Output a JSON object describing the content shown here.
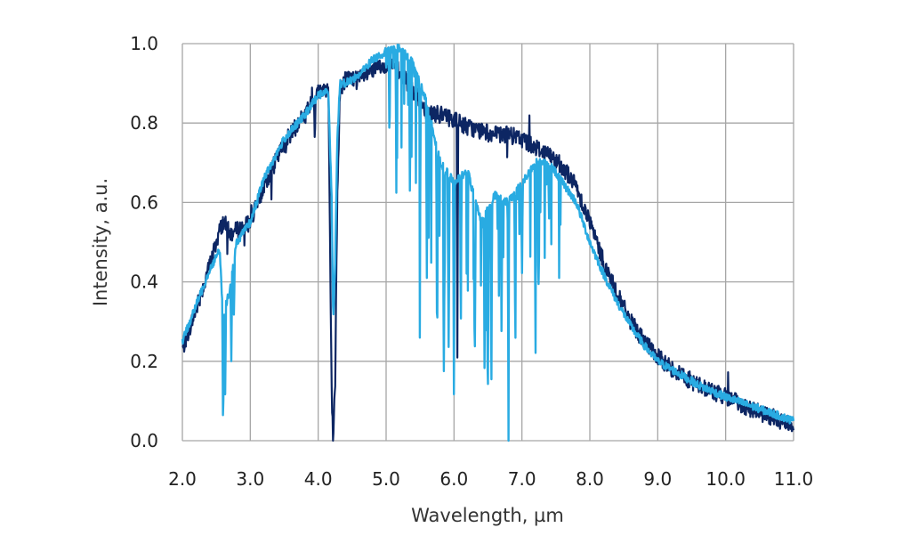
{
  "chart_data": {
    "type": "line",
    "title": "",
    "xlabel": "Wavelength, µm",
    "ylabel": "Intensity, a.u.",
    "xlim": [
      2.0,
      11.0
    ],
    "ylim": [
      0.0,
      1.0
    ],
    "x_ticks": [
      "2.0",
      "3.0",
      "4.0",
      "5.0",
      "6.0",
      "7.0",
      "8.0",
      "9.0",
      "10.0",
      "11.0"
    ],
    "y_ticks": [
      "0.0",
      "0.2",
      "0.4",
      "0.6",
      "0.8",
      "1.0"
    ],
    "grid": true,
    "legend": "none",
    "series": [
      {
        "color": "#0d2663",
        "noise": 0.022,
        "x": [
          2.0,
          2.2,
          2.4,
          2.55,
          2.6,
          2.65,
          2.7,
          2.8,
          3.0,
          3.2,
          3.5,
          3.8,
          4.0,
          4.15,
          4.18,
          4.2,
          4.22,
          4.25,
          4.28,
          4.32,
          4.4,
          4.6,
          4.8,
          5.0,
          5.2,
          5.4,
          5.6,
          5.8,
          6.0,
          6.2,
          6.4,
          6.6,
          6.8,
          7.0,
          7.2,
          7.4,
          7.6,
          7.8,
          8.0,
          8.2,
          8.4,
          8.6,
          8.8,
          9.0,
          9.3,
          9.6,
          10.0,
          10.5,
          11.0
        ],
        "y": [
          0.23,
          0.33,
          0.44,
          0.53,
          0.55,
          0.54,
          0.52,
          0.53,
          0.55,
          0.64,
          0.75,
          0.82,
          0.88,
          0.89,
          0.4,
          0.1,
          0.0,
          0.15,
          0.6,
          0.88,
          0.91,
          0.91,
          0.93,
          0.95,
          0.93,
          0.88,
          0.83,
          0.82,
          0.81,
          0.79,
          0.78,
          0.77,
          0.77,
          0.76,
          0.74,
          0.72,
          0.69,
          0.64,
          0.55,
          0.45,
          0.37,
          0.3,
          0.25,
          0.21,
          0.17,
          0.14,
          0.11,
          0.07,
          0.04
        ]
      },
      {
        "color": "#29abe2",
        "noise": 0.01,
        "x": [
          2.0,
          2.2,
          2.4,
          2.55,
          2.6,
          2.65,
          2.7,
          2.8,
          3.0,
          3.2,
          3.5,
          3.8,
          4.0,
          4.15,
          4.2,
          4.22,
          4.25,
          4.28,
          4.32,
          4.4,
          4.6,
          4.8,
          5.0,
          5.2,
          5.4,
          5.6,
          5.8,
          6.0,
          6.2,
          6.4,
          6.6,
          6.8,
          7.0,
          7.2,
          7.4,
          7.6,
          7.8,
          8.0,
          8.2,
          8.4,
          8.6,
          8.8,
          9.0,
          9.3,
          9.6,
          10.0,
          10.5,
          11.0
        ],
        "y": [
          0.25,
          0.34,
          0.43,
          0.48,
          0.3,
          0.35,
          0.38,
          0.5,
          0.55,
          0.66,
          0.76,
          0.82,
          0.87,
          0.88,
          0.6,
          0.3,
          0.45,
          0.75,
          0.9,
          0.9,
          0.92,
          0.96,
          0.98,
          0.99,
          0.95,
          0.85,
          0.7,
          0.65,
          0.68,
          0.55,
          0.62,
          0.6,
          0.65,
          0.7,
          0.7,
          0.65,
          0.6,
          0.5,
          0.42,
          0.35,
          0.29,
          0.24,
          0.2,
          0.17,
          0.14,
          0.11,
          0.08,
          0.05
        ]
      }
    ],
    "absorption_bands": [
      {
        "x": 2.6,
        "depth": 0.3,
        "series": 1
      },
      {
        "x": 2.63,
        "depth": 0.22,
        "series": 1
      },
      {
        "x": 2.72,
        "depth": 0.2,
        "series": 1
      },
      {
        "x": 2.76,
        "depth": 0.15,
        "series": 1
      },
      {
        "x": 3.95,
        "depth": 0.1,
        "series": 0
      },
      {
        "x": 5.05,
        "depth": 0.25,
        "series": 1
      },
      {
        "x": 5.15,
        "depth": 0.3,
        "series": 1
      },
      {
        "x": 5.35,
        "depth": 0.35,
        "series": 1
      },
      {
        "x": 5.5,
        "depth": 0.4,
        "series": 1
      },
      {
        "x": 5.6,
        "depth": 0.45,
        "series": 1
      },
      {
        "x": 5.75,
        "depth": 0.5,
        "series": 1
      },
      {
        "x": 5.85,
        "depth": 0.55,
        "series": 1
      },
      {
        "x": 5.92,
        "depth": 0.5,
        "series": 1
      },
      {
        "x": 6.0,
        "depth": 0.6,
        "series": 1
      },
      {
        "x": 6.05,
        "depth": 0.6,
        "series": 0
      },
      {
        "x": 6.1,
        "depth": 0.4,
        "series": 1
      },
      {
        "x": 6.3,
        "depth": 0.35,
        "series": 1
      },
      {
        "x": 6.45,
        "depth": 0.4,
        "series": 1
      },
      {
        "x": 6.5,
        "depth": 0.45,
        "series": 1
      },
      {
        "x": 6.55,
        "depth": 0.5,
        "series": 1
      },
      {
        "x": 6.7,
        "depth": 0.35,
        "series": 1
      },
      {
        "x": 6.8,
        "depth": 0.4,
        "series": 1
      },
      {
        "x": 6.9,
        "depth": 0.3,
        "series": 1
      },
      {
        "x": 7.0,
        "depth": 0.25,
        "series": 1
      },
      {
        "x": 7.2,
        "depth": 0.2,
        "series": 1
      },
      {
        "x": 7.4,
        "depth": 0.15,
        "series": 1
      }
    ]
  }
}
